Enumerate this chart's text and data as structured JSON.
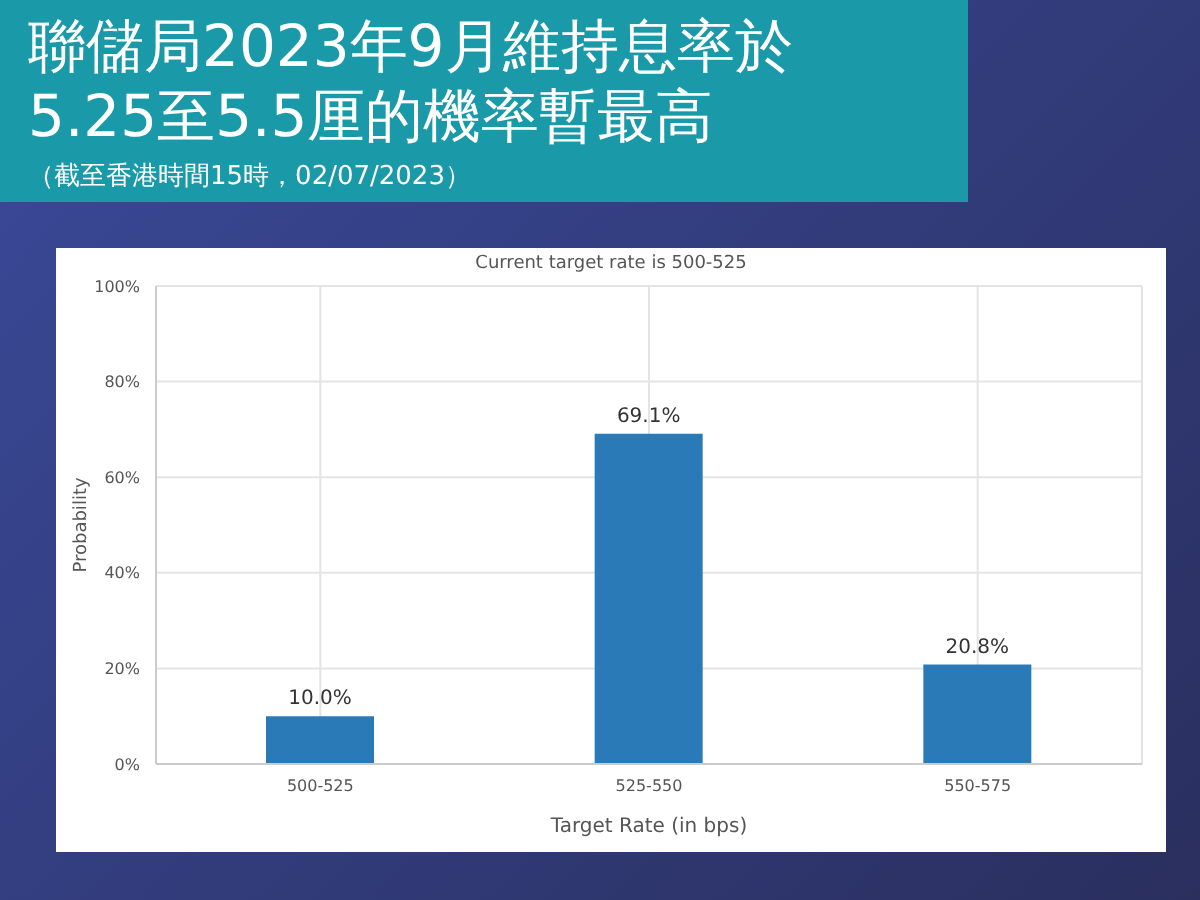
{
  "chart_data": {
    "type": "bar",
    "title": "聯儲局2023年9月維持息率於5.25至5.5厘的機率暫最高",
    "subtitle": "（截至香港時間15時，02/07/2023）",
    "annotations": [
      "Current target rate is 500-525"
    ],
    "xlabel": "Target Rate (in bps)",
    "ylabel": "Probability",
    "categories": [
      "500-525",
      "525-550",
      "550-575"
    ],
    "values": [
      10.0,
      69.1,
      20.8
    ],
    "value_labels": [
      "10.0%",
      "69.1%",
      "20.8%"
    ],
    "color": "#2a7ab8",
    "ylim": [
      0,
      100
    ],
    "yticks": [
      {
        "value": 0,
        "label": "0%"
      },
      {
        "value": 20,
        "label": "20%"
      },
      {
        "value": 40,
        "label": "40%"
      },
      {
        "value": 60,
        "label": "60%"
      },
      {
        "value": 80,
        "label": "80%"
      },
      {
        "value": 100,
        "label": "100%"
      }
    ],
    "grid": true,
    "legend": false
  }
}
